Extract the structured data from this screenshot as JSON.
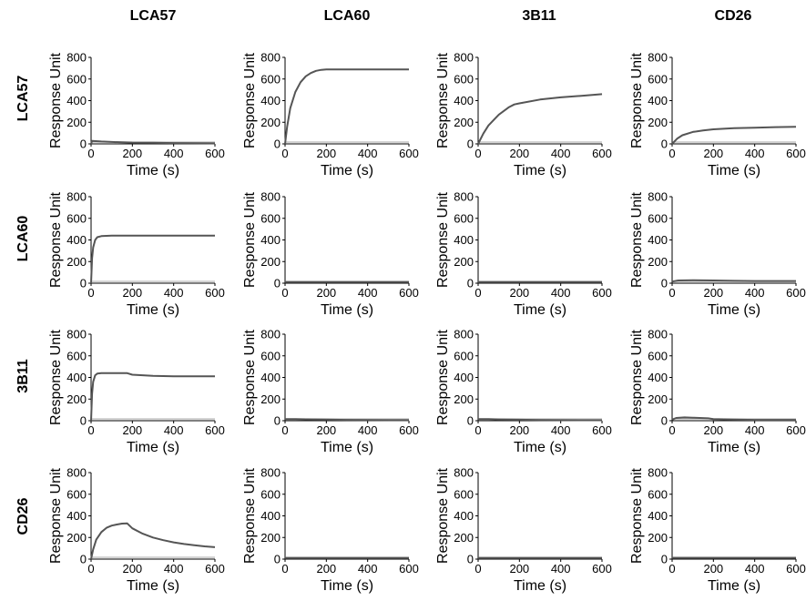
{
  "figure": {
    "column_headers": [
      "LCA57",
      "LCA60",
      "3B11",
      "CD26"
    ],
    "row_headers": [
      "LCA57",
      "LCA60",
      "3B11",
      "CD26"
    ]
  },
  "colors": {
    "curve": "#555555",
    "axis": "#000000",
    "baseline": "#bbbbbb"
  },
  "chart_data": [
    {
      "type": "line",
      "row": "LCA57",
      "column": "LCA57",
      "xlabel": "Time (s)",
      "ylabel": "Response Unit",
      "xlim": [
        0,
        600
      ],
      "ylim": [
        0,
        800
      ],
      "xticks": [
        0,
        200,
        400,
        600
      ],
      "yticks": [
        0,
        200,
        400,
        600,
        800
      ],
      "grid": false,
      "series": [
        {
          "x": [
            0,
            5,
            50,
            100,
            200,
            300,
            400,
            500,
            600
          ],
          "y": [
            0,
            28,
            22,
            18,
            12,
            10,
            8,
            6,
            5
          ]
        }
      ]
    },
    {
      "type": "line",
      "row": "LCA57",
      "column": "LCA60",
      "xlabel": "Time (s)",
      "ylabel": "Response Unit",
      "xlim": [
        0,
        600
      ],
      "ylim": [
        0,
        800
      ],
      "xticks": [
        0,
        200,
        400,
        600
      ],
      "yticks": [
        0,
        200,
        400,
        600,
        800
      ],
      "grid": false,
      "series": [
        {
          "x": [
            0,
            10,
            25,
            50,
            75,
            100,
            125,
            150,
            175,
            200,
            300,
            400,
            500,
            600
          ],
          "y": [
            0,
            160,
            330,
            480,
            570,
            625,
            655,
            675,
            685,
            688,
            688,
            688,
            688,
            688
          ]
        }
      ]
    },
    {
      "type": "line",
      "row": "LCA57",
      "column": "3B11",
      "xlabel": "Time (s)",
      "ylabel": "Response Unit",
      "xlim": [
        0,
        600
      ],
      "ylim": [
        0,
        800
      ],
      "xticks": [
        0,
        200,
        400,
        600
      ],
      "yticks": [
        0,
        200,
        400,
        600,
        800
      ],
      "grid": false,
      "series": [
        {
          "x": [
            0,
            25,
            50,
            100,
            150,
            175,
            200,
            300,
            400,
            500,
            600
          ],
          "y": [
            0,
            95,
            170,
            270,
            340,
            365,
            375,
            410,
            430,
            445,
            460
          ]
        }
      ]
    },
    {
      "type": "line",
      "row": "LCA57",
      "column": "CD26",
      "xlabel": "Time (s)",
      "ylabel": "Response Unit",
      "xlim": [
        0,
        600
      ],
      "ylim": [
        0,
        800
      ],
      "xticks": [
        0,
        200,
        400,
        600
      ],
      "yticks": [
        0,
        200,
        400,
        600,
        800
      ],
      "grid": false,
      "series": [
        {
          "x": [
            0,
            25,
            50,
            100,
            150,
            200,
            300,
            400,
            500,
            600
          ],
          "y": [
            0,
            50,
            80,
            110,
            125,
            135,
            145,
            150,
            155,
            158
          ]
        }
      ]
    },
    {
      "type": "line",
      "row": "LCA60",
      "column": "LCA57",
      "xlabel": "Time (s)",
      "ylabel": "Response Unit",
      "xlim": [
        0,
        600
      ],
      "ylim": [
        0,
        800
      ],
      "xticks": [
        0,
        200,
        400,
        600
      ],
      "yticks": [
        0,
        200,
        400,
        600,
        800
      ],
      "grid": false,
      "series": [
        {
          "x": [
            0,
            5,
            10,
            20,
            30,
            50,
            100,
            200,
            300,
            400,
            500,
            600
          ],
          "y": [
            0,
            230,
            330,
            400,
            425,
            435,
            440,
            440,
            440,
            440,
            440,
            440
          ]
        }
      ]
    },
    {
      "type": "line",
      "row": "LCA60",
      "column": "LCA60",
      "xlabel": "Time (s)",
      "ylabel": "Response Unit",
      "xlim": [
        0,
        600
      ],
      "ylim": [
        0,
        800
      ],
      "xticks": [
        0,
        200,
        400,
        600
      ],
      "yticks": [
        0,
        200,
        400,
        600,
        800
      ],
      "grid": false,
      "series": [
        {
          "x": [
            0,
            600
          ],
          "y": [
            10,
            10
          ]
        }
      ]
    },
    {
      "type": "line",
      "row": "LCA60",
      "column": "3B11",
      "xlabel": "Time (s)",
      "ylabel": "Response Unit",
      "xlim": [
        0,
        600
      ],
      "ylim": [
        0,
        800
      ],
      "xticks": [
        0,
        200,
        400,
        600
      ],
      "yticks": [
        0,
        200,
        400,
        600,
        800
      ],
      "grid": false,
      "series": [
        {
          "x": [
            0,
            600
          ],
          "y": [
            10,
            10
          ]
        }
      ]
    },
    {
      "type": "line",
      "row": "LCA60",
      "column": "CD26",
      "xlabel": "Time (s)",
      "ylabel": "Response Unit",
      "xlim": [
        0,
        600
      ],
      "ylim": [
        0,
        800
      ],
      "xticks": [
        0,
        200,
        400,
        600
      ],
      "yticks": [
        0,
        200,
        400,
        600,
        800
      ],
      "grid": false,
      "series": [
        {
          "x": [
            0,
            30,
            100,
            200,
            300,
            400,
            500,
            600
          ],
          "y": [
            15,
            25,
            28,
            25,
            22,
            20,
            20,
            20
          ]
        }
      ]
    },
    {
      "type": "line",
      "row": "3B11",
      "column": "LCA57",
      "xlabel": "Time (s)",
      "ylabel": "Response Unit",
      "xlim": [
        0,
        600
      ],
      "ylim": [
        0,
        800
      ],
      "xticks": [
        0,
        200,
        400,
        600
      ],
      "yticks": [
        0,
        200,
        400,
        600,
        800
      ],
      "grid": false,
      "series": [
        {
          "x": [
            0,
            5,
            10,
            20,
            30,
            50,
            100,
            175,
            200,
            300,
            400,
            500,
            600
          ],
          "y": [
            0,
            250,
            360,
            420,
            435,
            440,
            440,
            440,
            425,
            415,
            410,
            410,
            410
          ]
        }
      ]
    },
    {
      "type": "line",
      "row": "3B11",
      "column": "LCA60",
      "xlabel": "Time (s)",
      "ylabel": "Response Unit",
      "xlim": [
        0,
        600
      ],
      "ylim": [
        0,
        800
      ],
      "xticks": [
        0,
        200,
        400,
        600
      ],
      "yticks": [
        0,
        200,
        400,
        600,
        800
      ],
      "grid": false,
      "series": [
        {
          "x": [
            0,
            50,
            100,
            200,
            300,
            400,
            500,
            600
          ],
          "y": [
            15,
            15,
            13,
            10,
            8,
            6,
            5,
            5
          ]
        }
      ]
    },
    {
      "type": "line",
      "row": "3B11",
      "column": "3B11",
      "xlabel": "Time (s)",
      "ylabel": "Response Unit",
      "xlim": [
        0,
        600
      ],
      "ylim": [
        0,
        800
      ],
      "xticks": [
        0,
        200,
        400,
        600
      ],
      "yticks": [
        0,
        200,
        400,
        600,
        800
      ],
      "grid": false,
      "series": [
        {
          "x": [
            0,
            50,
            100,
            200,
            300,
            400,
            500,
            600
          ],
          "y": [
            15,
            14,
            12,
            9,
            7,
            5,
            4,
            4
          ]
        }
      ]
    },
    {
      "type": "line",
      "row": "3B11",
      "column": "CD26",
      "xlabel": "Time (s)",
      "ylabel": "Response Unit",
      "xlim": [
        0,
        600
      ],
      "ylim": [
        0,
        800
      ],
      "xticks": [
        0,
        200,
        400,
        600
      ],
      "yticks": [
        0,
        200,
        400,
        600,
        800
      ],
      "grid": false,
      "series": [
        {
          "x": [
            0,
            20,
            60,
            100,
            175,
            200,
            300,
            400,
            500,
            600
          ],
          "y": [
            10,
            25,
            30,
            28,
            22,
            15,
            10,
            8,
            8,
            8
          ]
        }
      ]
    },
    {
      "type": "line",
      "row": "CD26",
      "column": "LCA57",
      "xlabel": "Time (s)",
      "ylabel": "Response Unit",
      "xlim": [
        0,
        600
      ],
      "ylim": [
        0,
        800
      ],
      "xticks": [
        0,
        200,
        400,
        600
      ],
      "yticks": [
        0,
        200,
        400,
        600,
        800
      ],
      "grid": false,
      "series": [
        {
          "x": [
            0,
            10,
            25,
            50,
            75,
            100,
            125,
            150,
            175,
            200,
            250,
            300,
            350,
            400,
            450,
            500,
            550,
            600
          ],
          "y": [
            0,
            90,
            180,
            250,
            290,
            310,
            320,
            328,
            330,
            285,
            235,
            200,
            175,
            155,
            140,
            128,
            118,
            110
          ]
        }
      ]
    },
    {
      "type": "line",
      "row": "CD26",
      "column": "LCA60",
      "xlabel": "Time (s)",
      "ylabel": "Response Unit",
      "xlim": [
        0,
        600
      ],
      "ylim": [
        0,
        800
      ],
      "xticks": [
        0,
        200,
        400,
        600
      ],
      "yticks": [
        0,
        200,
        400,
        600,
        800
      ],
      "grid": false,
      "series": [
        {
          "x": [
            0,
            600
          ],
          "y": [
            10,
            10
          ]
        }
      ]
    },
    {
      "type": "line",
      "row": "CD26",
      "column": "3B11",
      "xlabel": "Time (s)",
      "ylabel": "Response Unit",
      "xlim": [
        0,
        600
      ],
      "ylim": [
        0,
        800
      ],
      "xticks": [
        0,
        200,
        400,
        600
      ],
      "yticks": [
        0,
        200,
        400,
        600,
        800
      ],
      "grid": false,
      "series": [
        {
          "x": [
            0,
            600
          ],
          "y": [
            10,
            10
          ]
        }
      ]
    },
    {
      "type": "line",
      "row": "CD26",
      "column": "CD26",
      "xlabel": "Time (s)",
      "ylabel": "Response Unit",
      "xlim": [
        0,
        600
      ],
      "ylim": [
        0,
        800
      ],
      "xticks": [
        0,
        200,
        400,
        600
      ],
      "yticks": [
        0,
        200,
        400,
        600,
        800
      ],
      "grid": false,
      "series": [
        {
          "x": [
            0,
            600
          ],
          "y": [
            12,
            12
          ]
        }
      ]
    }
  ]
}
